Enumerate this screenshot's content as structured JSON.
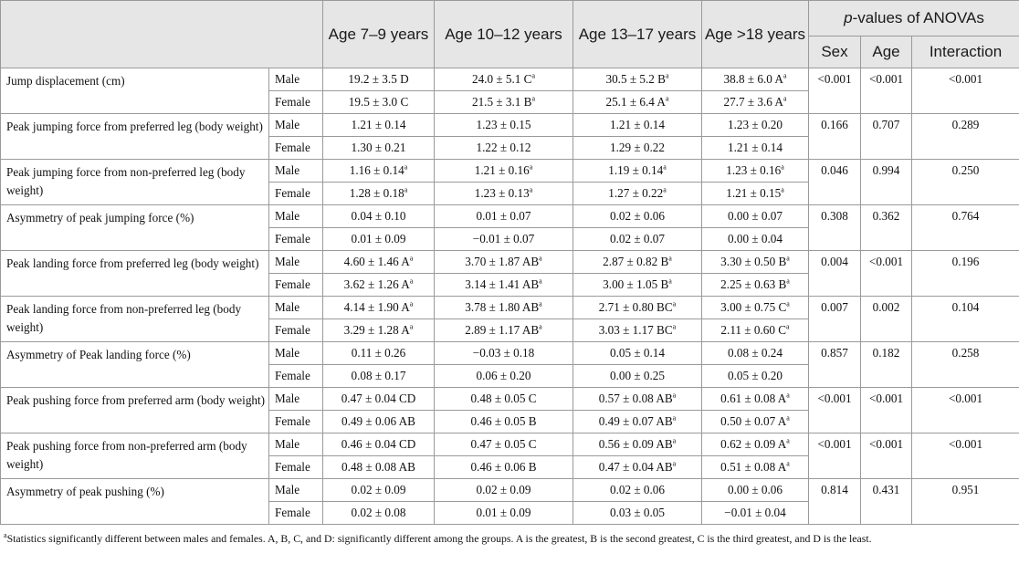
{
  "header": {
    "ages": [
      "Age 7–9 years",
      "Age 10–12 years",
      "Age 13–17 years",
      "Age >18 years"
    ],
    "pvalues_title_italic": "p",
    "pvalues_title_rest": "-values of ANOVAs",
    "pvalues_cols": [
      "Sex",
      "Age",
      "Interaction"
    ]
  },
  "rows": [
    {
      "measure": "Jump displacement (cm)",
      "male": {
        "sex": "Male",
        "vals": [
          {
            "v": "19.2 ± 3.5 D",
            "s": ""
          },
          {
            "v": "24.0 ± 5.1 C",
            "s": "a"
          },
          {
            "v": "30.5 ± 5.2 B",
            "s": "a"
          },
          {
            "v": "38.8 ± 6.0 A",
            "s": "a"
          }
        ]
      },
      "female": {
        "sex": "Female",
        "vals": [
          {
            "v": "19.5 ± 3.0 C",
            "s": ""
          },
          {
            "v": "21.5 ± 3.1 B",
            "s": "a"
          },
          {
            "v": "25.1 ± 6.4 A",
            "s": "a"
          },
          {
            "v": "27.7 ± 3.6 A",
            "s": "a"
          }
        ]
      },
      "p": [
        "<0.001",
        "<0.001",
        "<0.001"
      ]
    },
    {
      "measure": "Peak jumping force from preferred leg (body weight)",
      "male": {
        "sex": "Male",
        "vals": [
          {
            "v": "1.21 ± 0.14",
            "s": ""
          },
          {
            "v": "1.23 ± 0.15",
            "s": ""
          },
          {
            "v": "1.21 ± 0.14",
            "s": ""
          },
          {
            "v": "1.23 ± 0.20",
            "s": ""
          }
        ]
      },
      "female": {
        "sex": "Female",
        "vals": [
          {
            "v": "1.30 ± 0.21",
            "s": ""
          },
          {
            "v": "1.22 ± 0.12",
            "s": ""
          },
          {
            "v": "1.29 ± 0.22",
            "s": ""
          },
          {
            "v": "1.21 ± 0.14",
            "s": ""
          }
        ]
      },
      "p": [
        "0.166",
        "0.707",
        "0.289"
      ]
    },
    {
      "measure": "Peak jumping force from non-preferred leg (body weight)",
      "male": {
        "sex": "Male",
        "vals": [
          {
            "v": "1.16 ± 0.14",
            "s": "a"
          },
          {
            "v": "1.21 ± 0.16",
            "s": "a"
          },
          {
            "v": "1.19 ± 0.14",
            "s": "a"
          },
          {
            "v": "1.23 ± 0.16",
            "s": "a"
          }
        ]
      },
      "female": {
        "sex": "Female",
        "vals": [
          {
            "v": "1.28 ± 0.18",
            "s": "a"
          },
          {
            "v": "1.23 ± 0.13",
            "s": "a"
          },
          {
            "v": "1.27 ± 0.22",
            "s": "a"
          },
          {
            "v": "1.21 ± 0.15",
            "s": "a"
          }
        ]
      },
      "p": [
        "0.046",
        "0.994",
        "0.250"
      ]
    },
    {
      "measure": "Asymmetry of peak jumping force (%)",
      "male": {
        "sex": "Male",
        "vals": [
          {
            "v": "0.04 ± 0.10",
            "s": ""
          },
          {
            "v": "0.01 ± 0.07",
            "s": ""
          },
          {
            "v": "0.02 ± 0.06",
            "s": ""
          },
          {
            "v": "0.00 ± 0.07",
            "s": ""
          }
        ]
      },
      "female": {
        "sex": "Female",
        "vals": [
          {
            "v": "0.01 ± 0.09",
            "s": ""
          },
          {
            "v": "−0.01 ± 0.07",
            "s": ""
          },
          {
            "v": "0.02 ± 0.07",
            "s": ""
          },
          {
            "v": "0.00 ± 0.04",
            "s": ""
          }
        ]
      },
      "p": [
        "0.308",
        "0.362",
        "0.764"
      ]
    },
    {
      "measure": "Peak landing force from preferred leg (body weight)",
      "male": {
        "sex": "Male",
        "vals": [
          {
            "v": "4.60 ± 1.46 A",
            "s": "a"
          },
          {
            "v": "3.70 ± 1.87 AB",
            "s": "a"
          },
          {
            "v": "2.87 ± 0.82 B",
            "s": "a"
          },
          {
            "v": "3.30 ± 0.50 B",
            "s": "a"
          }
        ]
      },
      "female": {
        "sex": "Female",
        "vals": [
          {
            "v": "3.62 ± 1.26 A",
            "s": "a"
          },
          {
            "v": "3.14 ± 1.41 AB",
            "s": "a"
          },
          {
            "v": "3.00 ± 1.05 B",
            "s": "a"
          },
          {
            "v": "2.25 ± 0.63 B",
            "s": "a"
          }
        ]
      },
      "p": [
        "0.004",
        "<0.001",
        "0.196"
      ]
    },
    {
      "measure": "Peak landing force from non-preferred leg (body weight)",
      "male": {
        "sex": "Male",
        "vals": [
          {
            "v": "4.14 ± 1.90 A",
            "s": "a"
          },
          {
            "v": "3.78 ± 1.80 AB",
            "s": "a"
          },
          {
            "v": "2.71 ± 0.80 BC",
            "s": "a"
          },
          {
            "v": "3.00 ± 0.75 C",
            "s": "a"
          }
        ]
      },
      "female": {
        "sex": "Female",
        "vals": [
          {
            "v": "3.29 ± 1.28 A",
            "s": "a"
          },
          {
            "v": "2.89 ± 1.17 AB",
            "s": "a"
          },
          {
            "v": "3.03 ± 1.17 BC",
            "s": "a"
          },
          {
            "v": "2.11 ± 0.60 C",
            "s": "a"
          }
        ]
      },
      "p": [
        "0.007",
        "0.002",
        "0.104"
      ]
    },
    {
      "measure": "Asymmetry of Peak landing force (%)",
      "male": {
        "sex": "Male",
        "vals": [
          {
            "v": "0.11 ± 0.26",
            "s": ""
          },
          {
            "v": "−0.03 ± 0.18",
            "s": ""
          },
          {
            "v": "0.05 ± 0.14",
            "s": ""
          },
          {
            "v": "0.08 ± 0.24",
            "s": ""
          }
        ]
      },
      "female": {
        "sex": "Female",
        "vals": [
          {
            "v": "0.08 ± 0.17",
            "s": ""
          },
          {
            "v": "0.06 ± 0.20",
            "s": ""
          },
          {
            "v": "0.00 ± 0.25",
            "s": ""
          },
          {
            "v": "0.05 ± 0.20",
            "s": ""
          }
        ]
      },
      "p": [
        "0.857",
        "0.182",
        "0.258"
      ]
    },
    {
      "measure": "Peak pushing force from preferred arm (body weight)",
      "male": {
        "sex": "Male",
        "vals": [
          {
            "v": "0.47 ± 0.04 CD",
            "s": ""
          },
          {
            "v": "0.48 ± 0.05 C",
            "s": ""
          },
          {
            "v": "0.57 ± 0.08 AB",
            "s": "a"
          },
          {
            "v": "0.61 ± 0.08 A",
            "s": "a"
          }
        ]
      },
      "female": {
        "sex": "Female",
        "vals": [
          {
            "v": "0.49 ± 0.06 AB",
            "s": ""
          },
          {
            "v": "0.46 ± 0.05 B",
            "s": ""
          },
          {
            "v": "0.49 ± 0.07 AB",
            "s": "a"
          },
          {
            "v": "0.50 ± 0.07 A",
            "s": "a"
          }
        ]
      },
      "p": [
        "<0.001",
        "<0.001",
        "<0.001"
      ]
    },
    {
      "measure": "Peak pushing force from non-preferred arm (body weight)",
      "male": {
        "sex": "Male",
        "vals": [
          {
            "v": "0.46 ± 0.04 CD",
            "s": ""
          },
          {
            "v": "0.47 ± 0.05 C",
            "s": ""
          },
          {
            "v": "0.56 ± 0.09 AB",
            "s": "a"
          },
          {
            "v": "0.62 ± 0.09 A",
            "s": "a"
          }
        ]
      },
      "female": {
        "sex": "Female",
        "vals": [
          {
            "v": "0.48 ± 0.08 AB",
            "s": ""
          },
          {
            "v": "0.46 ± 0.06 B",
            "s": ""
          },
          {
            "v": "0.47 ± 0.04 AB",
            "s": "a"
          },
          {
            "v": "0.51 ± 0.08 A",
            "s": "a"
          }
        ]
      },
      "p": [
        "<0.001",
        "<0.001",
        "<0.001"
      ]
    },
    {
      "measure": "Asymmetry of peak pushing (%)",
      "male": {
        "sex": "Male",
        "vals": [
          {
            "v": "0.02 ± 0.09",
            "s": ""
          },
          {
            "v": "0.02 ± 0.09",
            "s": ""
          },
          {
            "v": "0.02 ± 0.06",
            "s": ""
          },
          {
            "v": "0.00 ± 0.06",
            "s": ""
          }
        ]
      },
      "female": {
        "sex": "Female",
        "vals": [
          {
            "v": "0.02 ± 0.08",
            "s": ""
          },
          {
            "v": "0.01 ± 0.09",
            "s": ""
          },
          {
            "v": "0.03 ± 0.05",
            "s": ""
          },
          {
            "v": "−0.01 ± 0.04",
            "s": ""
          }
        ]
      },
      "p": [
        "0.814",
        "0.431",
        "0.951"
      ]
    }
  ],
  "footnote": {
    "mark": "a",
    "text": "Statistics significantly different between males and females. A, B, C, and D: significantly different among the groups. A is the greatest, B is the second greatest, C is the third greatest, and D is the least."
  }
}
